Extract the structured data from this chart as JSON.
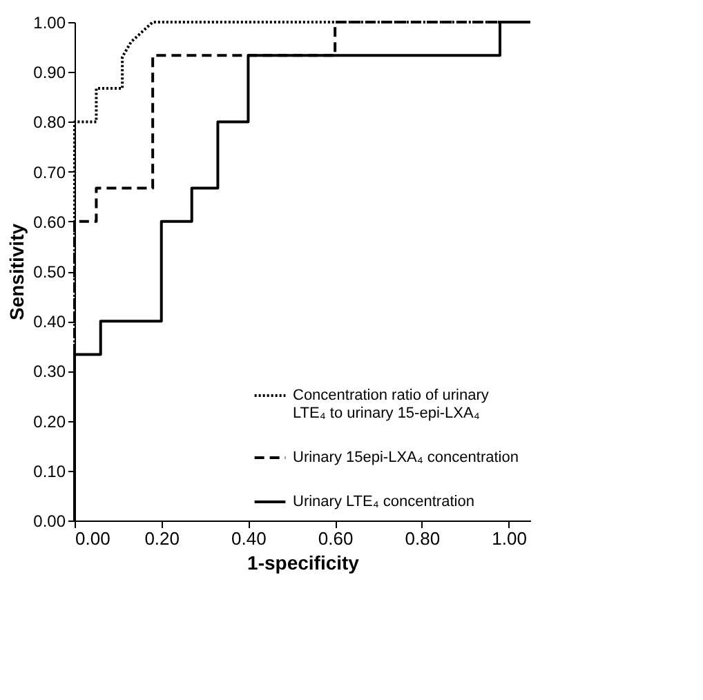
{
  "chart_data": {
    "type": "line",
    "xlabel": "1-specificity",
    "ylabel": "Sensitivity",
    "xlim": [
      0,
      1.05
    ],
    "ylim": [
      0,
      1
    ],
    "xticks": [
      {
        "value": 0,
        "label": "0.00"
      },
      {
        "value": 0.2,
        "label": "0.20"
      },
      {
        "value": 0.4,
        "label": "0.40"
      },
      {
        "value": 0.6,
        "label": "0.60"
      },
      {
        "value": 0.8,
        "label": "0.80"
      },
      {
        "value": 1,
        "label": "1.00"
      }
    ],
    "yticks": [
      {
        "value": 0,
        "label": "0.00"
      },
      {
        "value": 0.1,
        "label": "0.10"
      },
      {
        "value": 0.2,
        "label": "0.20"
      },
      {
        "value": 0.3,
        "label": "0.30"
      },
      {
        "value": 0.4,
        "label": "0.40"
      },
      {
        "value": 0.5,
        "label": "0.50"
      },
      {
        "value": 0.6,
        "label": "0.60"
      },
      {
        "value": 0.7,
        "label": "0.70"
      },
      {
        "value": 0.8,
        "label": "0.80"
      },
      {
        "value": 0.9,
        "label": "0.90"
      },
      {
        "value": 1,
        "label": "1.00"
      }
    ],
    "grid": false,
    "legend": "bottom right",
    "marker": "none",
    "series": [
      {
        "name": "Concentration ratio of urinary LTE₄ to urinary 15-epi-LXA₄",
        "color": "#000000",
        "line_style": "dotted",
        "x": [
          0,
          0,
          0.05,
          0.05,
          0.11,
          0.11,
          0.13,
          0.18,
          1.0
        ],
        "values": [
          0,
          0.8,
          0.8,
          0.867,
          0.867,
          0.93,
          0.96,
          1.0,
          1.0
        ]
      },
      {
        "name": "Urinary 15epi-LXA₄ concentration",
        "color": "#000000",
        "line_style": "dashed",
        "x": [
          0,
          0,
          0.05,
          0.05,
          0.18,
          0.18,
          0.6,
          0.6,
          1.0
        ],
        "values": [
          0,
          0.6,
          0.6,
          0.667,
          0.667,
          0.933,
          0.933,
          1.0,
          1.0
        ]
      },
      {
        "name": "Urinary LTE₄ concentration",
        "color": "#000000",
        "line_style": "solid",
        "x": [
          0,
          0,
          0.06,
          0.06,
          0.2,
          0.2,
          0.27,
          0.27,
          0.33,
          0.33,
          0.4,
          0.4,
          0.98,
          0.98,
          1.05
        ],
        "values": [
          0,
          0.333,
          0.333,
          0.4,
          0.4,
          0.6,
          0.6,
          0.667,
          0.667,
          0.8,
          0.8,
          0.933,
          0.933,
          1.0,
          1.0
        ]
      }
    ]
  }
}
